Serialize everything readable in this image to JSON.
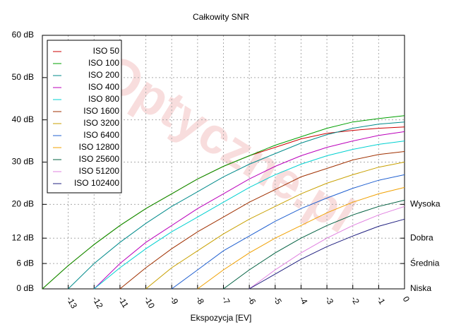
{
  "chart_data": {
    "type": "line",
    "title": "Całkowity SNR",
    "xlabel": "Ekspozycja [EV]",
    "watermark": "Optyczne.pl",
    "x": [
      -14,
      -13,
      -12,
      -11,
      -10,
      -9,
      -8,
      -7,
      -6,
      -5,
      -4,
      -3,
      -2,
      -1,
      0
    ],
    "xlim": [
      -14,
      0
    ],
    "xticks": [
      -13,
      -12,
      -11,
      -10,
      -9,
      -8,
      -7,
      -6,
      -5,
      -4,
      -3,
      -2,
      -1,
      0
    ],
    "ylim": [
      0,
      60
    ],
    "yticks": [
      {
        "value": 0,
        "label": "0 dB"
      },
      {
        "value": 6,
        "label": "6 dB"
      },
      {
        "value": 12,
        "label": "12 dB"
      },
      {
        "value": 20,
        "label": "20 dB"
      },
      {
        "value": 30,
        "label": "30 dB"
      },
      {
        "value": 40,
        "label": "40 dB"
      },
      {
        "value": 50,
        "label": "50 dB"
      },
      {
        "value": 60,
        "label": "60 dB"
      }
    ],
    "y2lim": [
      0,
      60
    ],
    "y2ticks": [
      {
        "value": 20,
        "label": "Wysoka"
      },
      {
        "value": 12,
        "label": "Dobra"
      },
      {
        "value": 6,
        "label": "Średnia"
      },
      {
        "value": 0,
        "label": "Niska"
      }
    ],
    "grid": true,
    "legend": "top-left",
    "series": [
      {
        "name": "ISO 50",
        "color": "#cc0000",
        "values": [
          0,
          5.5,
          10.5,
          15,
          19,
          22.5,
          26,
          29,
          31.5,
          33.5,
          35.5,
          36.8,
          37.5,
          38,
          38.3
        ]
      },
      {
        "name": "ISO 100",
        "color": "#00a000",
        "values": [
          0,
          5.5,
          10.5,
          15,
          19,
          22.5,
          26,
          29,
          31.5,
          34,
          36,
          38,
          39.5,
          40.3,
          41
        ]
      },
      {
        "name": "ISO 200",
        "color": "#008b8b",
        "values": [
          null,
          0,
          6,
          11,
          15.5,
          19.5,
          23,
          26.5,
          29.5,
          32,
          34.5,
          36.5,
          38,
          39,
          39.5
        ]
      },
      {
        "name": "ISO 400",
        "color": "#bb00bb",
        "values": [
          null,
          null,
          0,
          6,
          11,
          15,
          19,
          22.5,
          26,
          29,
          31.5,
          33.5,
          35,
          36.3,
          37.2
        ]
      },
      {
        "name": "ISO 800",
        "color": "#00d0d0",
        "values": [
          null,
          null,
          0,
          5,
          9.5,
          13.5,
          17,
          20.5,
          24,
          27,
          29.5,
          31.5,
          33,
          34.2,
          35
        ]
      },
      {
        "name": "ISO 1600",
        "color": "#a03000",
        "values": [
          null,
          null,
          null,
          0,
          5,
          9.5,
          13.5,
          17,
          20.5,
          23.5,
          26.5,
          28.5,
          30.5,
          31.8,
          32.5
        ]
      },
      {
        "name": "ISO 3200",
        "color": "#c8a000",
        "values": [
          null,
          null,
          null,
          null,
          0,
          5,
          9,
          13,
          16.5,
          19.5,
          22.5,
          25,
          27,
          28.8,
          30
        ]
      },
      {
        "name": "ISO 6400",
        "color": "#2060d0",
        "values": [
          null,
          null,
          null,
          null,
          null,
          0,
          4.5,
          9,
          12.5,
          16,
          19,
          21.5,
          23.8,
          25.7,
          27
        ]
      },
      {
        "name": "ISO 12800",
        "color": "#f0a000",
        "values": [
          null,
          null,
          null,
          null,
          null,
          null,
          0,
          4.5,
          8.5,
          12,
          15,
          18,
          20.5,
          22.5,
          24
        ]
      },
      {
        "name": "ISO 25600",
        "color": "#006040",
        "values": [
          null,
          null,
          null,
          null,
          null,
          null,
          null,
          0,
          4.5,
          8.5,
          12,
          15,
          17.5,
          19.5,
          21
        ]
      },
      {
        "name": "ISO 51200",
        "color": "#e080e0",
        "values": [
          null,
          null,
          null,
          null,
          null,
          null,
          null,
          null,
          0,
          4.5,
          8.5,
          12,
          15,
          17.5,
          19.5
        ]
      },
      {
        "name": "ISO 102400",
        "color": "#202080",
        "values": [
          null,
          null,
          null,
          null,
          null,
          null,
          null,
          null,
          0,
          3.5,
          7,
          10,
          12.5,
          14.8,
          16.5
        ]
      }
    ]
  }
}
